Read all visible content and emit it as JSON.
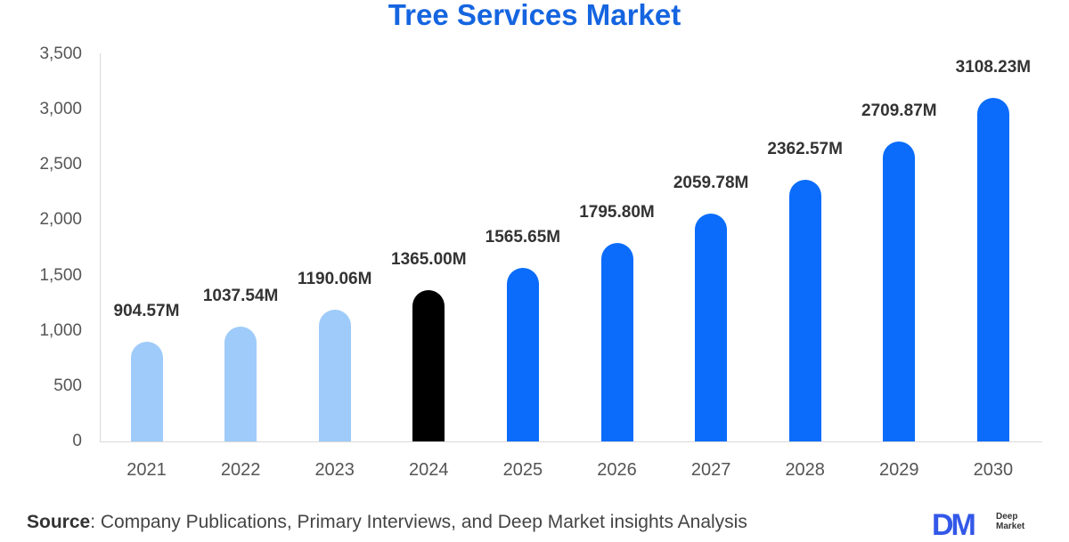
{
  "title": "Tree Services Market",
  "colors": {
    "title": "#1565e0",
    "historical": "#9ecbfa",
    "base_year": "#000000",
    "forecast": "#0b6cfb"
  },
  "chart_data": {
    "type": "bar",
    "title": "Tree Services Market",
    "xlabel": "",
    "ylabel": "",
    "ylim": [
      0,
      3500
    ],
    "yticks": [
      0,
      500,
      1000,
      1500,
      2000,
      2500,
      3000,
      3500
    ],
    "ytick_labels": [
      "0",
      "500",
      "1,000",
      "1,500",
      "2,000",
      "2,500",
      "3,000",
      "3,500"
    ],
    "grid": false,
    "legend": null,
    "categories": [
      "2021",
      "2022",
      "2023",
      "2024",
      "2025",
      "2026",
      "2027",
      "2028",
      "2029",
      "2030"
    ],
    "values": [
      904.57,
      1037.54,
      1190.06,
      1365.0,
      1565.65,
      1795.8,
      2059.78,
      2362.57,
      2709.87,
      3108.23
    ],
    "data_labels": [
      "904.57M",
      "1037.54M",
      "1190.06M",
      "1365.00M",
      "1565.65M",
      "1795.80M",
      "2059.78M",
      "2362.57M",
      "2709.87M",
      "3108.23M"
    ],
    "bar_colors": [
      "#9ecbfa",
      "#9ecbfa",
      "#9ecbfa",
      "#000000",
      "#0b6cfb",
      "#0b6cfb",
      "#0b6cfb",
      "#0b6cfb",
      "#0b6cfb",
      "#0b6cfb"
    ],
    "unit": "USD Million"
  },
  "source": {
    "label": "Source",
    "text": ": Company Publications, Primary Interviews, and Deep Market insights Analysis"
  },
  "logo": {
    "mark": "DM",
    "line1": "Deep",
    "line2": "Market"
  }
}
